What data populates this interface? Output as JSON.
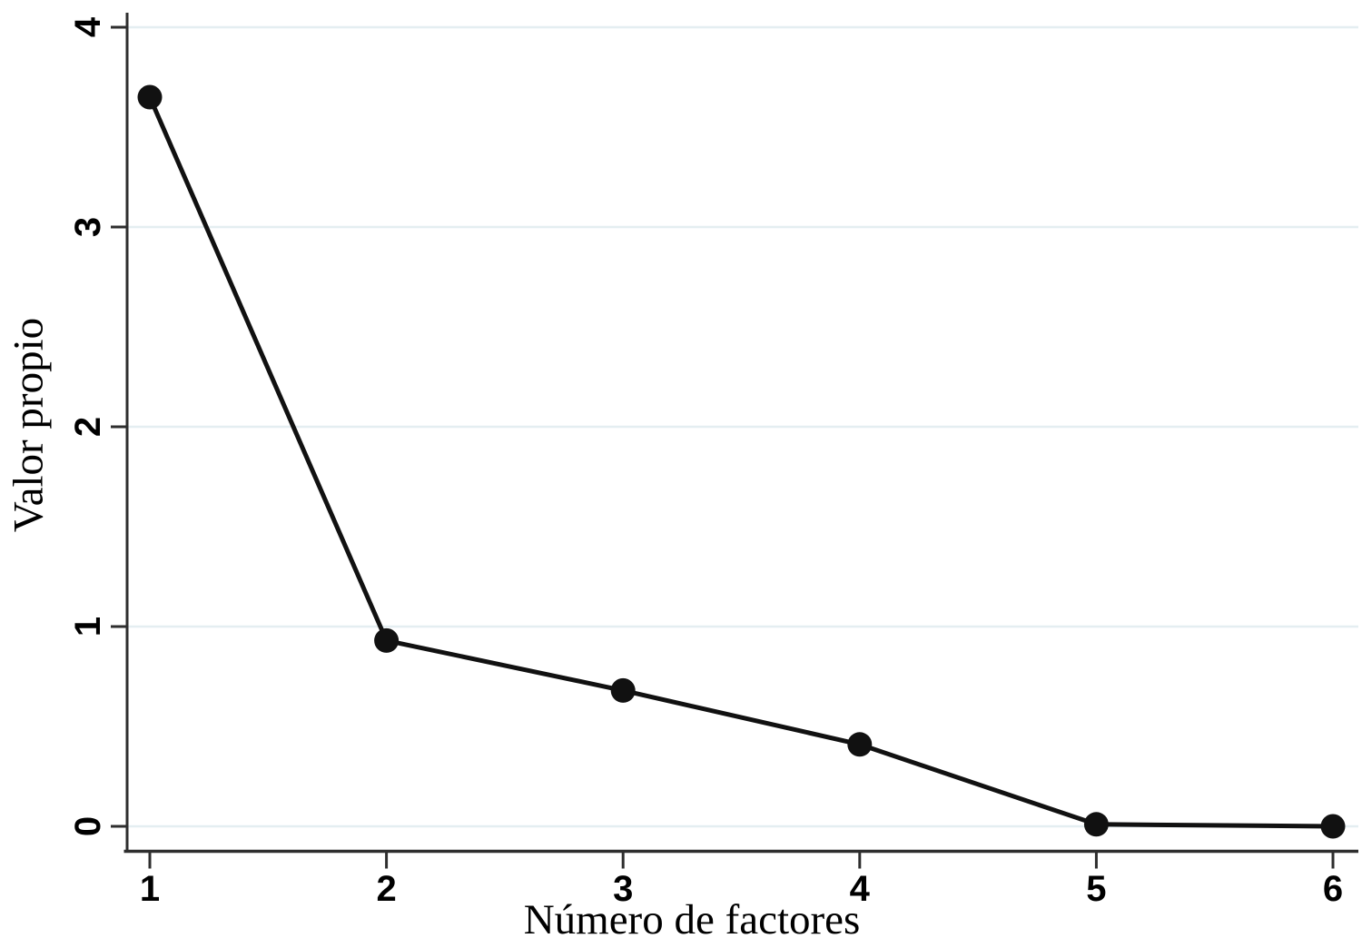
{
  "figure": {
    "title": "",
    "xlabel": "Número de factores",
    "ylabel": "Valor propio"
  },
  "chart_data": {
    "type": "line",
    "title": "",
    "xlabel": "Número de factores",
    "ylabel": "Valor propio",
    "x": [
      1,
      2,
      3,
      4,
      5,
      6
    ],
    "series": [
      {
        "name": "Valor propio",
        "values": [
          3.65,
          0.93,
          0.68,
          0.41,
          0.01,
          0.0
        ]
      }
    ],
    "xticks": [
      "1",
      "2",
      "3",
      "4",
      "5",
      "6"
    ],
    "yticks": [
      "0",
      "1",
      "2",
      "3",
      "4"
    ],
    "xlim": [
      0.9,
      6.11
    ],
    "ylim": [
      0,
      4.12
    ],
    "grid": "horizontal-only",
    "legend": "none",
    "marker": "filled-circle",
    "colors": {
      "line": "#111111",
      "marker": "#111111",
      "grid": "#e4eef1",
      "axis": "#2e2e2e",
      "text": "#000000",
      "background": "#ffffff"
    }
  }
}
